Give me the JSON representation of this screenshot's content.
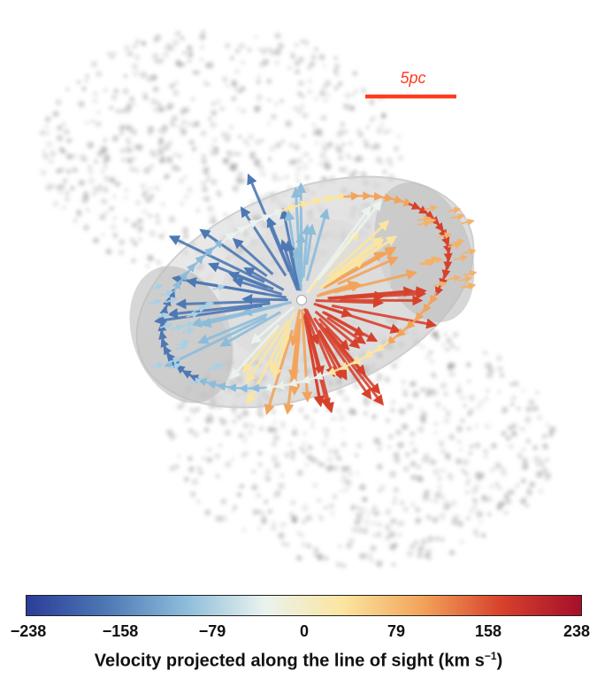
{
  "scale_bar": {
    "label": "5pc"
  },
  "colorbar": {
    "ticks": [
      "−238",
      "−158",
      "−79",
      "0",
      "79",
      "158",
      "238"
    ],
    "label_main": "Velocity projected along the line of sight (km s",
    "label_sup": "−1",
    "label_end": ")",
    "colors": [
      "#2b3d99",
      "#4d78b4",
      "#8cbcda",
      "#eaf3ee",
      "#fbe5a0",
      "#f3a35a",
      "#d7412c",
      "#a50f2a"
    ]
  }
}
